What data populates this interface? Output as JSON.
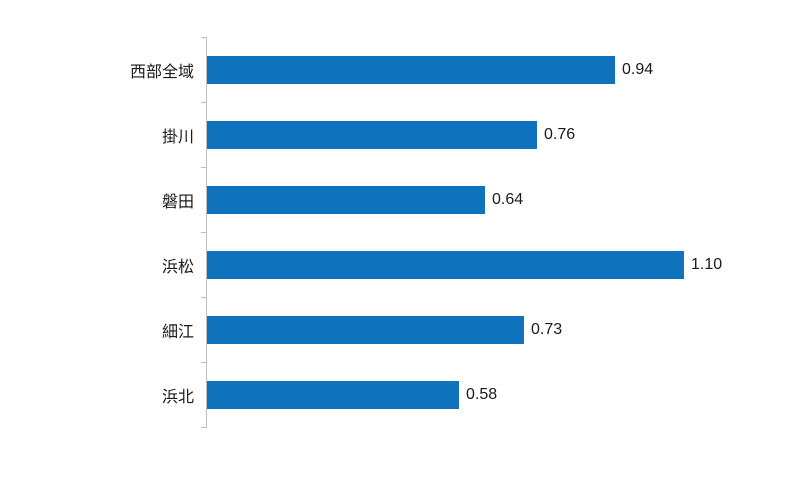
{
  "chart_data": {
    "type": "bar",
    "orientation": "horizontal",
    "title": "",
    "xlabel": "",
    "ylabel": "",
    "categories": [
      "西部全域",
      "掛川",
      "磐田",
      "浜松",
      "細江",
      "浜北"
    ],
    "values": [
      0.94,
      0.76,
      0.64,
      1.1,
      0.73,
      0.58
    ],
    "value_labels": [
      "0.94",
      "0.76",
      "0.64",
      "1.10",
      "0.73",
      "0.58"
    ],
    "xlim": [
      0,
      1.1
    ],
    "grid": false,
    "legend_position": "none",
    "bar_color": "#0e72bd",
    "axis_color": "#bfbfbf",
    "text_color": "#1a1a1a",
    "background_color": "#ffffff"
  }
}
